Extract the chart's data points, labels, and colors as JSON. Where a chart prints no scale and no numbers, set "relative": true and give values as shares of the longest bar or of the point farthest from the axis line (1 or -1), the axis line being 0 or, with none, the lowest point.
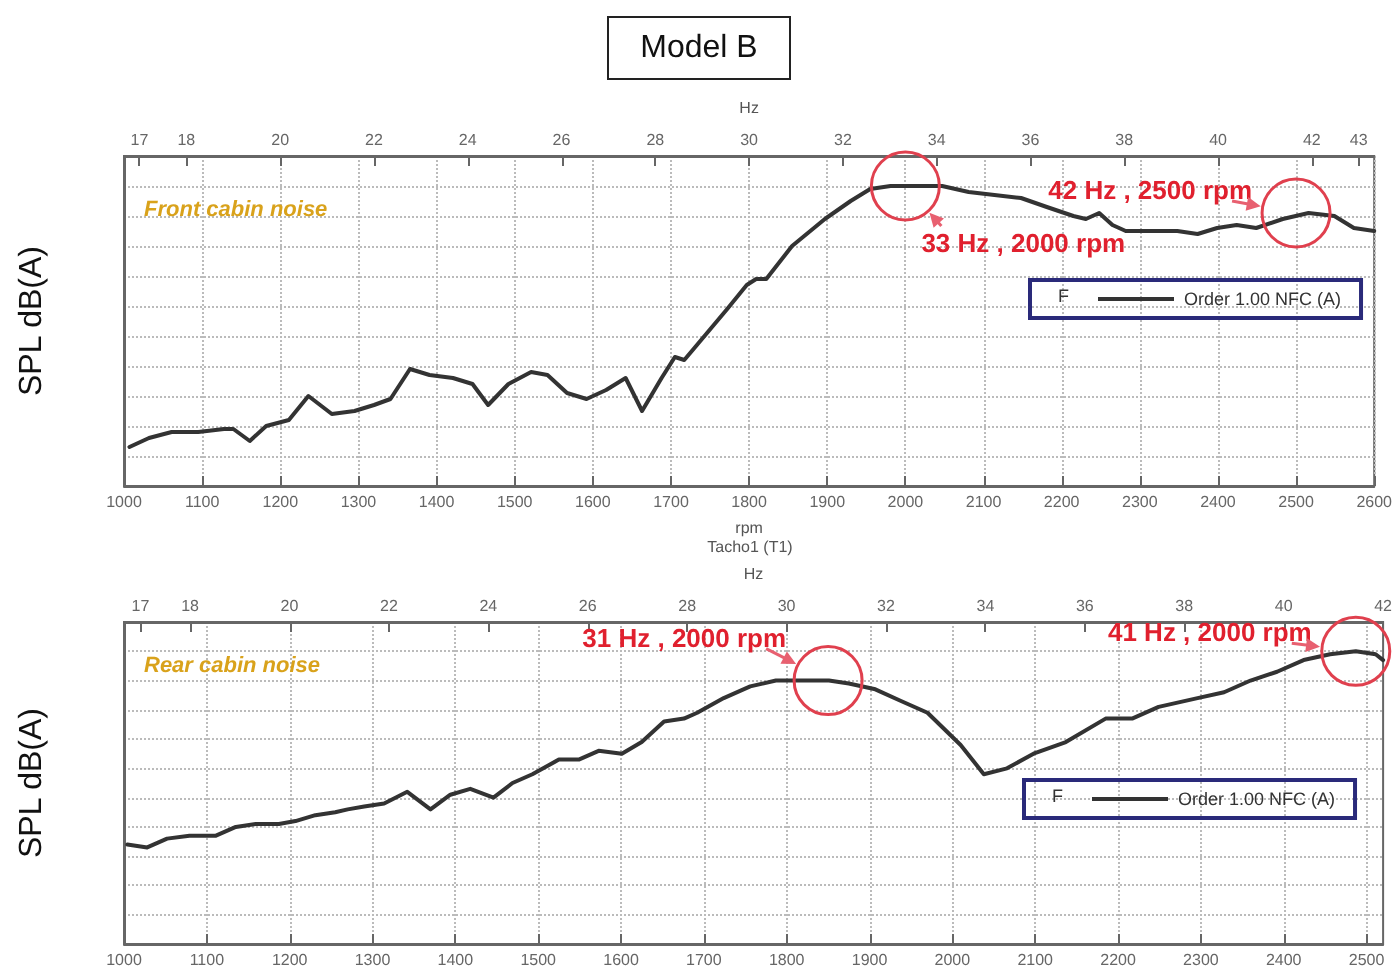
{
  "chart_data": [
    {
      "type": "line",
      "title": "Model B",
      "xlabel": "rpm",
      "x2label": "Hz",
      "ylabel": "SPL dB(A)",
      "legend_title": "F",
      "legend": "right",
      "grid": true,
      "relative": true,
      "marker": "none",
      "line_style": "solid",
      "xlim": [
        1000,
        2600
      ],
      "xticks": [
        1000,
        1100,
        1200,
        1300,
        1400,
        1500,
        1600,
        1700,
        1800,
        1900,
        2000,
        2100,
        2200,
        2300,
        2400,
        2500,
        2600
      ],
      "x2lim": [
        16.67,
        43.33
      ],
      "x2ticks": [
        17,
        18,
        20,
        22,
        24,
        26,
        28,
        30,
        32,
        34,
        36,
        38,
        40,
        42,
        43
      ],
      "x": [
        1007,
        1032,
        1061,
        1095,
        1128,
        1140,
        1161,
        1182,
        1211,
        1236,
        1266,
        1295,
        1320,
        1341,
        1366,
        1391,
        1421,
        1446,
        1466,
        1492,
        1521,
        1542,
        1567,
        1592,
        1617,
        1642,
        1663,
        1688,
        1705,
        1717,
        1730,
        1772,
        1797,
        1809,
        1822,
        1855,
        1897,
        1930,
        1955,
        1981,
        2022,
        2047,
        2081,
        2114,
        2148,
        2181,
        2215,
        2231,
        2248,
        2265,
        2282,
        2315,
        2348,
        2374,
        2399,
        2424,
        2449,
        2483,
        2516,
        2549,
        2574,
        2600
      ],
      "series": [
        {
          "name": "Order 1.00 NFC (A)",
          "color": "#333333",
          "values": [
            0.13,
            0.16,
            0.18,
            0.18,
            0.19,
            0.19,
            0.15,
            0.2,
            0.22,
            0.3,
            0.24,
            0.25,
            0.27,
            0.29,
            0.39,
            0.37,
            0.36,
            0.34,
            0.27,
            0.34,
            0.38,
            0.37,
            0.31,
            0.29,
            0.32,
            0.36,
            0.25,
            0.36,
            0.43,
            0.42,
            0.46,
            0.59,
            0.67,
            0.69,
            0.69,
            0.8,
            0.89,
            0.95,
            0.99,
            1.0,
            1.0,
            1.0,
            0.98,
            0.97,
            0.96,
            0.93,
            0.9,
            0.89,
            0.91,
            0.87,
            0.85,
            0.85,
            0.85,
            0.84,
            0.86,
            0.87,
            0.86,
            0.89,
            0.91,
            0.9,
            0.86,
            0.85
          ]
        }
      ],
      "annotations": [
        "Front cabin noise",
        {
          "text": "33 Hz , 2000 rpm",
          "x": 2000,
          "y": 1.0
        },
        {
          "text": "42 Hz , 2500 rpm",
          "x": 2500,
          "y": 0.91
        },
        "Tacho1 (T1)"
      ]
    },
    {
      "type": "line",
      "x2label": "Hz",
      "ylabel": "SPL dB(A)",
      "legend_title": "F",
      "legend": "right",
      "grid": true,
      "relative": true,
      "marker": "none",
      "line_style": "solid",
      "xlim": [
        1000,
        2520
      ],
      "xticks": [
        1000,
        1100,
        1200,
        1300,
        1400,
        1500,
        1600,
        1700,
        1800,
        1900,
        2000,
        2100,
        2200,
        2300,
        2400,
        2500
      ],
      "x2lim": [
        16.67,
        42
      ],
      "x2ticks": [
        17,
        18,
        20,
        22,
        24,
        26,
        28,
        30,
        32,
        34,
        36,
        38,
        40,
        42
      ],
      "x": [
        1004,
        1028,
        1052,
        1079,
        1111,
        1135,
        1159,
        1187,
        1207,
        1231,
        1255,
        1270,
        1290,
        1314,
        1342,
        1370,
        1394,
        1418,
        1446,
        1469,
        1493,
        1525,
        1549,
        1573,
        1601,
        1625,
        1652,
        1676,
        1692,
        1724,
        1756,
        1787,
        1851,
        1875,
        1907,
        1938,
        1970,
        2010,
        2038,
        2066,
        2098,
        2137,
        2185,
        2217,
        2249,
        2296,
        2328,
        2360,
        2392,
        2424,
        2456,
        2487,
        2511,
        2520
      ],
      "series": [
        {
          "name": "Order 1.00 NFC (A)",
          "color": "#333333",
          "values": [
            0.34,
            0.33,
            0.36,
            0.37,
            0.37,
            0.4,
            0.41,
            0.41,
            0.42,
            0.44,
            0.45,
            0.46,
            0.47,
            0.48,
            0.52,
            0.46,
            0.51,
            0.53,
            0.5,
            0.55,
            0.58,
            0.63,
            0.63,
            0.66,
            0.65,
            0.69,
            0.76,
            0.77,
            0.79,
            0.84,
            0.88,
            0.9,
            0.9,
            0.89,
            0.87,
            0.83,
            0.79,
            0.68,
            0.58,
            0.6,
            0.65,
            0.69,
            0.77,
            0.77,
            0.81,
            0.84,
            0.86,
            0.9,
            0.93,
            0.97,
            0.99,
            1.0,
            0.99,
            0.97
          ]
        }
      ],
      "annotations": [
        "Rear cabin noise",
        {
          "text": "31 Hz , 2000 rpm",
          "x": 1850,
          "y": 0.9
        },
        {
          "text": "41 Hz , 2000 rpm",
          "x": 2487,
          "y": 1.0
        }
      ]
    }
  ]
}
